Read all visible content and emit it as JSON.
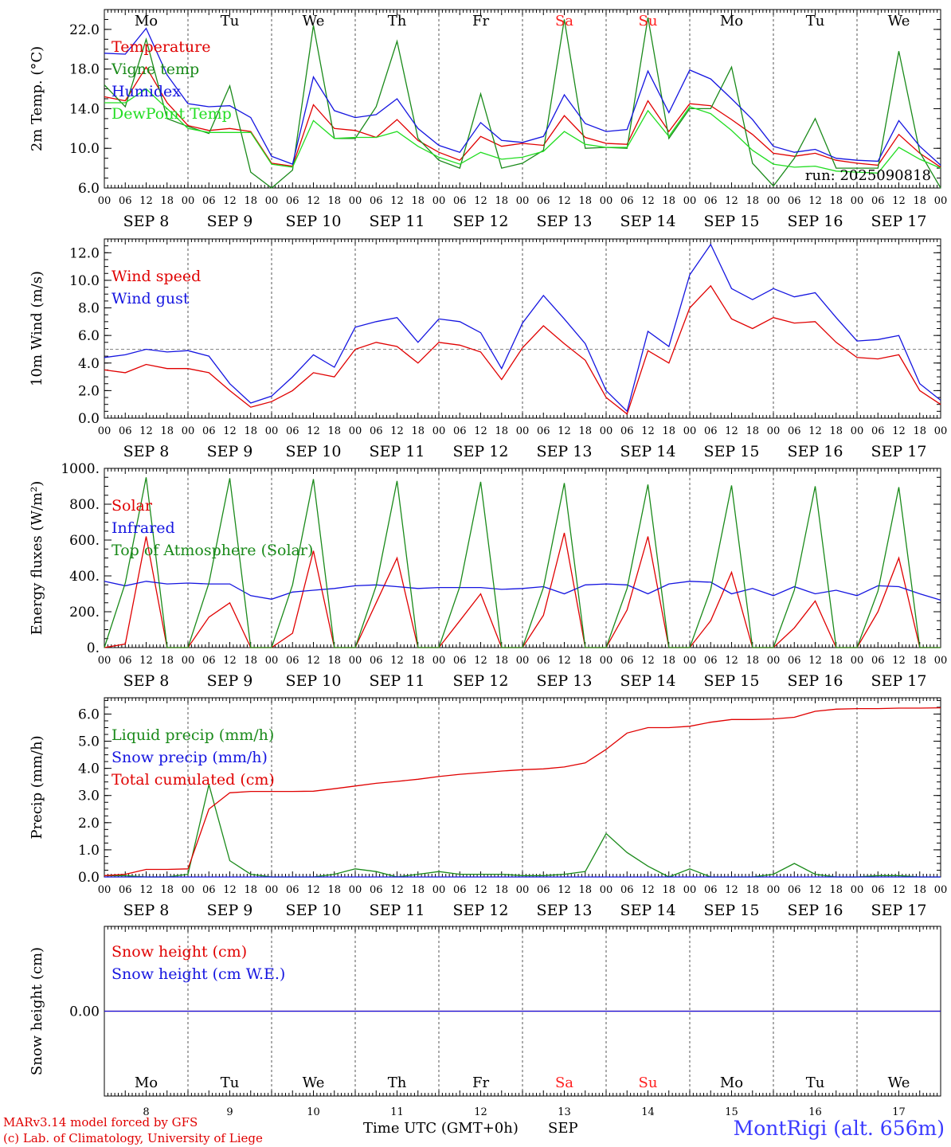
{
  "run_label": "run: 2025090818",
  "days_short": [
    "Mo",
    "Tu",
    "We",
    "Th",
    "Fr",
    "Sa",
    "Su",
    "Mo",
    "Tu",
    "We"
  ],
  "weekend_days": [
    "Sa",
    "Su"
  ],
  "date_labels": [
    "SEP  8",
    "SEP  9",
    "SEP 10",
    "SEP 11",
    "SEP 12",
    "SEP 13",
    "SEP 14",
    "SEP 15",
    "SEP 16",
    "SEP 17"
  ],
  "day_numbers": [
    "8",
    "9",
    "10",
    "11",
    "12",
    "13",
    "14",
    "15",
    "16",
    "17"
  ],
  "hour_ticks": [
    "00",
    "06",
    "12",
    "18"
  ],
  "hour_end": "00",
  "footer": {
    "credit1": "MARv3.14 model forced by GFS",
    "credit2": "(c) Lab. of Climatology, University of Liege",
    "axis_title": "Time UTC (GMT+0h)",
    "month": "SEP",
    "station": "MontRigi (alt. 656m)"
  },
  "colors": {
    "red": "#e00000",
    "green": "#1a8a1a",
    "blue": "#1515e0",
    "lightgreen": "#22dd22",
    "weekend": "#ff2020",
    "station": "#3a3aff"
  },
  "chart_data": [
    {
      "type": "line",
      "ylabel": "2m Temp. (°C)",
      "ylim": [
        6,
        24
      ],
      "yticks": [
        6,
        10,
        14,
        18,
        22
      ],
      "ytick_labels": [
        "6.0",
        "10.0",
        "14.0",
        "18.0",
        "22.0"
      ],
      "legend_position": "top-left",
      "x_hours": [
        0,
        6,
        12,
        18,
        24,
        30,
        36,
        42,
        48,
        54,
        60,
        66,
        72,
        78,
        84,
        90,
        96,
        102,
        108,
        114,
        120,
        126,
        132,
        138,
        144,
        150,
        156,
        162,
        168,
        174,
        180,
        186,
        192,
        198,
        204,
        210,
        216,
        222,
        228,
        234,
        240
      ],
      "series": [
        {
          "name": "Temperature",
          "color": "red",
          "values": [
            15.2,
            14.8,
            18.2,
            14.6,
            12.3,
            11.8,
            12.0,
            11.7,
            8.5,
            8.2,
            14.4,
            12.0,
            11.8,
            11.1,
            12.9,
            10.8,
            9.6,
            8.8,
            11.2,
            10.2,
            10.5,
            10.3,
            13.3,
            11.1,
            10.5,
            10.4,
            14.8,
            11.7,
            14.5,
            14.3,
            12.9,
            11.4,
            9.5,
            9.2,
            9.5,
            8.8,
            8.5,
            8.3,
            11.4,
            9.5,
            8.1
          ]
        },
        {
          "name": "Vigne temp",
          "color": "green",
          "values": [
            16.4,
            14.2,
            21.0,
            13.0,
            12.2,
            11.5,
            16.3,
            7.6,
            6.0,
            7.8,
            22.4,
            11.0,
            11.0,
            14.2,
            20.8,
            11.0,
            8.8,
            8.0,
            15.5,
            8.0,
            8.5,
            9.8,
            23.0,
            10.0,
            10.1,
            10.0,
            23.2,
            11.0,
            14.0,
            14.0,
            18.2,
            8.5,
            6.2,
            9.0,
            13.0,
            8.0,
            8.0,
            8.0,
            19.8,
            9.6,
            6.0
          ]
        },
        {
          "name": "Humidex",
          "color": "blue",
          "values": [
            19.6,
            19.5,
            22.1,
            17.4,
            14.5,
            14.2,
            14.3,
            13.1,
            9.2,
            8.4,
            17.2,
            13.8,
            13.1,
            13.4,
            15.0,
            12.0,
            10.3,
            9.6,
            12.6,
            10.8,
            10.6,
            11.2,
            15.4,
            12.5,
            11.7,
            11.9,
            17.8,
            13.6,
            17.9,
            17.0,
            15.0,
            12.9,
            10.2,
            9.6,
            9.9,
            9.0,
            8.8,
            8.7,
            12.8,
            10.2,
            8.3
          ]
        },
        {
          "name": "DewPoint Temp",
          "color": "lightgreen",
          "values": [
            14.6,
            14.6,
            16.0,
            14.0,
            12.0,
            11.6,
            11.6,
            11.6,
            8.4,
            8.1,
            12.8,
            11.0,
            11.1,
            11.1,
            11.7,
            10.2,
            9.1,
            8.4,
            9.6,
            8.9,
            9.1,
            9.7,
            11.7,
            10.4,
            10.1,
            10.1,
            13.8,
            11.2,
            14.2,
            13.5,
            11.8,
            9.8,
            8.4,
            8.1,
            8.2,
            7.7,
            7.6,
            7.5,
            10.1,
            8.9,
            8.0
          ]
        }
      ]
    },
    {
      "type": "line",
      "ylabel": "10m Wind (m/s)",
      "ylim": [
        0,
        13
      ],
      "yticks": [
        0,
        2,
        4,
        6,
        8,
        10,
        12
      ],
      "ytick_labels": [
        "0.0",
        "2.0",
        "4.0",
        "6.0",
        "8.0",
        "10.0",
        "12.0"
      ],
      "reference_line": 5,
      "legend_position": "top-left",
      "x_hours": [
        0,
        6,
        12,
        18,
        24,
        30,
        36,
        42,
        48,
        54,
        60,
        66,
        72,
        78,
        84,
        90,
        96,
        102,
        108,
        114,
        120,
        126,
        132,
        138,
        144,
        150,
        156,
        162,
        168,
        174,
        180,
        186,
        192,
        198,
        204,
        210,
        216,
        222,
        228,
        234,
        240
      ],
      "series": [
        {
          "name": "Wind speed",
          "color": "red",
          "values": [
            3.5,
            3.3,
            3.9,
            3.6,
            3.6,
            3.3,
            2.0,
            0.8,
            1.2,
            2.0,
            3.3,
            3.0,
            5.0,
            5.5,
            5.2,
            4.0,
            5.5,
            5.3,
            4.8,
            2.8,
            5.1,
            6.7,
            5.4,
            4.2,
            1.5,
            0.3,
            4.9,
            4.0,
            8.0,
            9.6,
            7.2,
            6.5,
            7.3,
            6.9,
            7.0,
            5.5,
            4.4,
            4.3,
            4.6,
            2.0,
            1.0
          ]
        },
        {
          "name": "Wind gust",
          "color": "blue",
          "values": [
            4.4,
            4.6,
            5.0,
            4.8,
            4.9,
            4.5,
            2.5,
            1.1,
            1.6,
            3.0,
            4.6,
            3.7,
            6.6,
            7.0,
            7.3,
            5.5,
            7.2,
            7.0,
            6.2,
            3.6,
            6.9,
            8.9,
            7.2,
            5.4,
            2.0,
            0.5,
            6.3,
            5.2,
            10.4,
            12.6,
            9.4,
            8.6,
            9.4,
            8.8,
            9.1,
            7.3,
            5.6,
            5.7,
            6.0,
            2.5,
            1.3
          ]
        }
      ]
    },
    {
      "type": "line",
      "ylabel": "Energy fluxes (W/m²)",
      "ylim": [
        0,
        1000
      ],
      "yticks": [
        0,
        200,
        400,
        600,
        800,
        1000
      ],
      "ytick_labels": [
        "0.",
        "200.",
        "400.",
        "600.",
        "800.",
        "1000."
      ],
      "legend_position": "top-left",
      "x_hours": [
        0,
        6,
        12,
        18,
        24,
        30,
        36,
        42,
        48,
        54,
        60,
        66,
        72,
        78,
        84,
        90,
        96,
        102,
        108,
        114,
        120,
        126,
        132,
        138,
        144,
        150,
        156,
        162,
        168,
        174,
        180,
        186,
        192,
        198,
        204,
        210,
        216,
        222,
        228,
        234,
        240
      ],
      "series": [
        {
          "name": "Solar",
          "color": "red",
          "values": [
            0,
            20,
            620,
            0,
            0,
            170,
            250,
            0,
            0,
            80,
            540,
            0,
            0,
            250,
            500,
            0,
            0,
            150,
            300,
            0,
            0,
            180,
            640,
            0,
            0,
            210,
            620,
            0,
            0,
            150,
            420,
            0,
            0,
            110,
            260,
            0,
            0,
            200,
            500,
            0,
            0
          ]
        },
        {
          "name": "Infrared",
          "color": "blue",
          "values": [
            370,
            345,
            370,
            355,
            360,
            355,
            355,
            290,
            270,
            310,
            320,
            330,
            345,
            350,
            340,
            330,
            335,
            335,
            335,
            325,
            330,
            340,
            300,
            350,
            355,
            350,
            300,
            355,
            370,
            365,
            300,
            330,
            290,
            340,
            300,
            320,
            290,
            345,
            340,
            300,
            265
          ]
        },
        {
          "name": "Top of Atmosphere (Solar)",
          "color": "green",
          "values": [
            0,
            360,
            950,
            0,
            0,
            360,
            945,
            0,
            0,
            350,
            940,
            0,
            0,
            345,
            930,
            0,
            0,
            340,
            925,
            0,
            0,
            335,
            918,
            0,
            0,
            330,
            910,
            0,
            0,
            325,
            905,
            0,
            0,
            320,
            900,
            0,
            0,
            315,
            895,
            0,
            0
          ]
        }
      ]
    },
    {
      "type": "line",
      "ylabel": "Precip (mm/h)",
      "ylim": [
        0,
        6.6
      ],
      "yticks": [
        0,
        1,
        2,
        3,
        4,
        5,
        6
      ],
      "ytick_labels": [
        "0.0",
        "1.0",
        "2.0",
        "3.0",
        "4.0",
        "5.0",
        "6.0"
      ],
      "legend_position": "top-left",
      "x_hours": [
        0,
        6,
        12,
        18,
        24,
        30,
        36,
        42,
        48,
        54,
        60,
        66,
        72,
        78,
        84,
        90,
        96,
        102,
        108,
        114,
        120,
        126,
        132,
        138,
        144,
        150,
        156,
        162,
        168,
        174,
        180,
        186,
        192,
        198,
        204,
        210,
        216,
        222,
        228,
        234,
        240
      ],
      "series": [
        {
          "name": "Liquid precip (mm/h)",
          "color": "green",
          "values": [
            0.05,
            0.05,
            0,
            0,
            0.1,
            3.4,
            0.6,
            0.1,
            0,
            0,
            0,
            0.1,
            0.3,
            0.2,
            0,
            0.1,
            0.2,
            0.1,
            0.1,
            0.1,
            0.05,
            0.05,
            0.1,
            0.2,
            1.6,
            0.9,
            0.4,
            0,
            0.3,
            0,
            0,
            0,
            0.1,
            0.5,
            0.1,
            0,
            0,
            0.05,
            0.05,
            0,
            0
          ]
        },
        {
          "name": "Snow precip (mm/h)",
          "color": "blue",
          "values": [
            0,
            0,
            0,
            0,
            0,
            0,
            0,
            0,
            0,
            0,
            0,
            0,
            0,
            0,
            0,
            0,
            0,
            0,
            0,
            0,
            0,
            0,
            0,
            0,
            0,
            0,
            0,
            0,
            0,
            0,
            0,
            0,
            0,
            0,
            0,
            0,
            0,
            0,
            0,
            0,
            0
          ]
        },
        {
          "name": "Total cumulated (cm)",
          "color": "red",
          "values": [
            0.05,
            0.1,
            0.28,
            0.28,
            0.3,
            2.5,
            3.1,
            3.15,
            3.15,
            3.15,
            3.16,
            3.25,
            3.35,
            3.45,
            3.52,
            3.6,
            3.7,
            3.78,
            3.84,
            3.9,
            3.95,
            3.98,
            4.05,
            4.2,
            4.7,
            5.3,
            5.5,
            5.5,
            5.55,
            5.7,
            5.8,
            5.8,
            5.82,
            5.88,
            6.1,
            6.18,
            6.2,
            6.2,
            6.22,
            6.22,
            6.23
          ]
        }
      ]
    },
    {
      "type": "line",
      "ylabel": "Snow height (cm)",
      "ylim": [
        -1,
        1
      ],
      "yticks": [
        0
      ],
      "ytick_labels": [
        "0.00"
      ],
      "legend_position": "top-left",
      "x_hours": [
        0,
        240
      ],
      "series": [
        {
          "name": "Snow height (cm)",
          "color": "red",
          "values": [
            0,
            0
          ]
        },
        {
          "name": "Snow height (cm W.E.)",
          "color": "blue",
          "values": [
            0,
            0
          ]
        }
      ]
    }
  ]
}
